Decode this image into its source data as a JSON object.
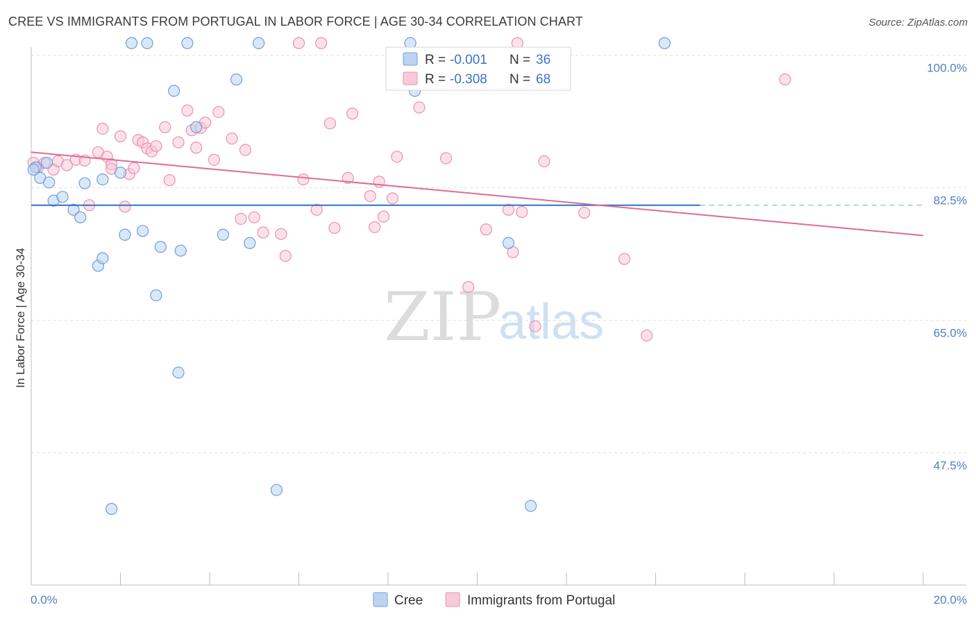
{
  "title": "CREE VS IMMIGRANTS FROM PORTUGAL IN LABOR FORCE | AGE 30-34 CORRELATION CHART",
  "source": "Source: ZipAtlas.com",
  "watermark": {
    "zip": "ZIP",
    "atlas": "atlas"
  },
  "colors": {
    "cree": "#6f9fd8",
    "cree_fill": "#bcd4f2",
    "portugal": "#ee8fb0",
    "portugal_fill": "#f8c9d8",
    "axis_text": "#4f7fc4",
    "cree_line": "#2f72c9",
    "portugal_line": "#e06a96"
  },
  "legend": {
    "rows": [
      {
        "r_label": "R =",
        "r_value": "-0.001",
        "n_label": "N =",
        "n_value": "36"
      },
      {
        "r_label": "R =",
        "r_value": "-0.308",
        "n_label": "N =",
        "n_value": "68"
      }
    ]
  },
  "bottom_legend": {
    "cree": "Cree",
    "portugal": "Immigrants from Portugal"
  },
  "chart_data": {
    "type": "scatter",
    "title": "CREE VS IMMIGRANTS FROM PORTUGAL IN LABOR FORCE | AGE 30-34 CORRELATION CHART",
    "xlabel": "",
    "ylabel": "In Labor Force | Age 30-34",
    "xlim": [
      0,
      20
    ],
    "ylim": [
      32,
      103
    ],
    "x_tick_labels": [
      "0.0%",
      "20.0%"
    ],
    "y_ticks": [
      100.0,
      82.5,
      65.0,
      47.5
    ],
    "y_tick_labels": [
      "100.0%",
      "82.5%",
      "65.0%",
      "47.5%"
    ],
    "series": [
      {
        "name": "Cree",
        "trend": {
          "x0": 0,
          "y0": 80.2,
          "x1": 15.0,
          "y1": 80.2,
          "dash_to": 20
        },
        "points": [
          [
            0.1,
            85.2
          ],
          [
            0.2,
            83.8
          ],
          [
            0.35,
            85.8
          ],
          [
            0.4,
            83.2
          ],
          [
            0.5,
            80.8
          ],
          [
            0.7,
            81.3
          ],
          [
            0.95,
            79.6
          ],
          [
            1.1,
            78.6
          ],
          [
            1.2,
            83.1
          ],
          [
            1.5,
            72.2
          ],
          [
            1.6,
            73.2
          ],
          [
            1.6,
            83.6
          ],
          [
            1.8,
            40.1
          ],
          [
            2.0,
            84.5
          ],
          [
            2.1,
            76.3
          ],
          [
            2.25,
            101.6
          ],
          [
            2.5,
            76.8
          ],
          [
            2.6,
            101.6
          ],
          [
            2.8,
            68.3
          ],
          [
            2.9,
            74.7
          ],
          [
            3.2,
            95.3
          ],
          [
            3.3,
            58.1
          ],
          [
            3.35,
            74.2
          ],
          [
            3.5,
            101.6
          ],
          [
            3.7,
            90.5
          ],
          [
            4.3,
            76.3
          ],
          [
            4.6,
            96.8
          ],
          [
            4.9,
            75.2
          ],
          [
            5.1,
            101.6
          ],
          [
            5.5,
            42.6
          ],
          [
            8.5,
            101.6
          ],
          [
            8.6,
            95.3
          ],
          [
            10.7,
            75.2
          ],
          [
            11.2,
            40.5
          ],
          [
            14.2,
            101.6
          ],
          [
            0.05,
            84.9
          ]
        ]
      },
      {
        "name": "Immigrants from Portugal",
        "trend": {
          "x0": 0,
          "y0": 87.2,
          "x1": 20,
          "y1": 76.2
        },
        "points": [
          [
            0.05,
            85.8
          ],
          [
            0.15,
            85.2
          ],
          [
            0.3,
            85.8
          ],
          [
            0.5,
            84.9
          ],
          [
            0.6,
            86.0
          ],
          [
            0.8,
            85.5
          ],
          [
            1.0,
            86.2
          ],
          [
            1.2,
            86.1
          ],
          [
            1.3,
            80.2
          ],
          [
            1.5,
            87.2
          ],
          [
            1.6,
            90.3
          ],
          [
            1.7,
            86.6
          ],
          [
            1.8,
            85.6
          ],
          [
            2.0,
            89.3
          ],
          [
            2.1,
            80.0
          ],
          [
            2.2,
            84.3
          ],
          [
            2.3,
            85.1
          ],
          [
            2.4,
            88.8
          ],
          [
            2.5,
            88.5
          ],
          [
            2.6,
            87.7
          ],
          [
            2.7,
            87.3
          ],
          [
            2.8,
            88.0
          ],
          [
            3.0,
            90.5
          ],
          [
            3.1,
            83.5
          ],
          [
            3.3,
            88.5
          ],
          [
            3.5,
            92.7
          ],
          [
            3.6,
            90.1
          ],
          [
            3.7,
            87.8
          ],
          [
            3.8,
            90.4
          ],
          [
            3.9,
            91.1
          ],
          [
            4.1,
            86.2
          ],
          [
            4.2,
            92.5
          ],
          [
            4.5,
            89.0
          ],
          [
            4.7,
            78.4
          ],
          [
            4.8,
            87.5
          ],
          [
            5.0,
            78.6
          ],
          [
            5.2,
            76.6
          ],
          [
            5.6,
            76.4
          ],
          [
            5.7,
            73.5
          ],
          [
            6.0,
            101.6
          ],
          [
            6.1,
            83.6
          ],
          [
            6.4,
            79.6
          ],
          [
            6.5,
            101.6
          ],
          [
            6.7,
            91.0
          ],
          [
            6.8,
            77.2
          ],
          [
            7.1,
            83.8
          ],
          [
            7.2,
            92.3
          ],
          [
            7.6,
            81.4
          ],
          [
            7.7,
            77.3
          ],
          [
            7.8,
            83.3
          ],
          [
            7.9,
            78.7
          ],
          [
            8.1,
            81.1
          ],
          [
            8.2,
            86.6
          ],
          [
            8.7,
            93.1
          ],
          [
            9.3,
            86.4
          ],
          [
            9.8,
            69.4
          ],
          [
            10.2,
            77.0
          ],
          [
            10.7,
            79.6
          ],
          [
            10.8,
            74.0
          ],
          [
            10.9,
            101.6
          ],
          [
            11.0,
            79.3
          ],
          [
            11.3,
            64.2
          ],
          [
            11.5,
            86.0
          ],
          [
            12.4,
            79.2
          ],
          [
            13.3,
            73.1
          ],
          [
            13.8,
            63.0
          ],
          [
            16.9,
            96.8
          ],
          [
            1.8,
            85.0
          ]
        ]
      }
    ]
  }
}
